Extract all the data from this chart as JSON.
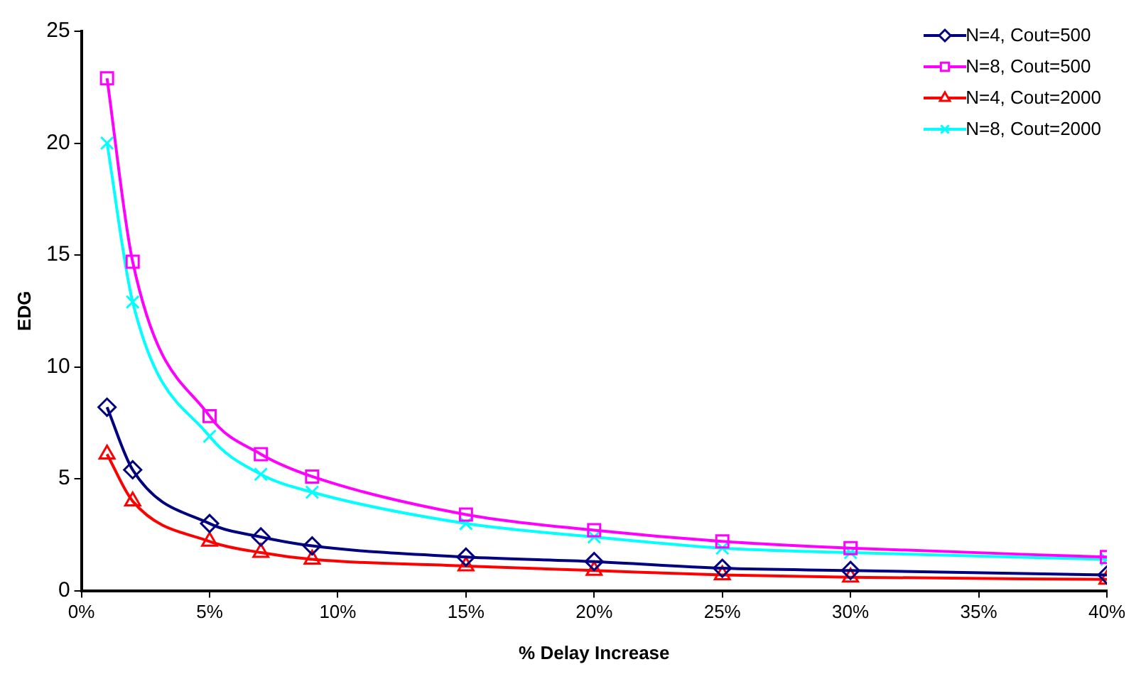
{
  "chart_data": {
    "type": "line",
    "xlabel": "% Delay Increase",
    "ylabel": "EDG",
    "grid": false,
    "legend": "top right",
    "xlim": [
      0,
      40
    ],
    "ylim": [
      0,
      25
    ],
    "xticks": [
      {
        "value": 0,
        "label": "0%"
      },
      {
        "value": 5,
        "label": "5%"
      },
      {
        "value": 10,
        "label": "10%"
      },
      {
        "value": 15,
        "label": "15%"
      },
      {
        "value": 20,
        "label": "20%"
      },
      {
        "value": 25,
        "label": "25%"
      },
      {
        "value": 30,
        "label": "30%"
      },
      {
        "value": 35,
        "label": "35%"
      },
      {
        "value": 40,
        "label": "40%"
      }
    ],
    "yticks": [
      0,
      5,
      10,
      15,
      20,
      25
    ],
    "x": [
      1,
      2,
      5,
      7,
      9,
      15,
      20,
      25,
      30,
      40
    ],
    "series": [
      {
        "name": "N=4, Cout=500",
        "color": "#000080",
        "marker": "diamond",
        "values": [
          8.2,
          5.4,
          3.0,
          2.4,
          2.0,
          1.5,
          1.3,
          1.0,
          0.9,
          0.7
        ]
      },
      {
        "name": "N=8, Cout=500",
        "color": "#ff00ff",
        "marker": "square",
        "values": [
          22.9,
          14.7,
          7.8,
          6.1,
          5.1,
          3.4,
          2.7,
          2.2,
          1.9,
          1.5
        ]
      },
      {
        "name": "N=4, Cout=2000",
        "color": "#ff0000",
        "marker": "triangle",
        "values": [
          6.1,
          4.0,
          2.2,
          1.7,
          1.4,
          1.1,
          0.9,
          0.7,
          0.6,
          0.5
        ]
      },
      {
        "name": "N=8, Cout=2000",
        "color": "#00ffff",
        "marker": "cross",
        "values": [
          20.0,
          12.9,
          6.9,
          5.2,
          4.4,
          3.0,
          2.4,
          1.9,
          1.7,
          1.4
        ]
      }
    ]
  }
}
